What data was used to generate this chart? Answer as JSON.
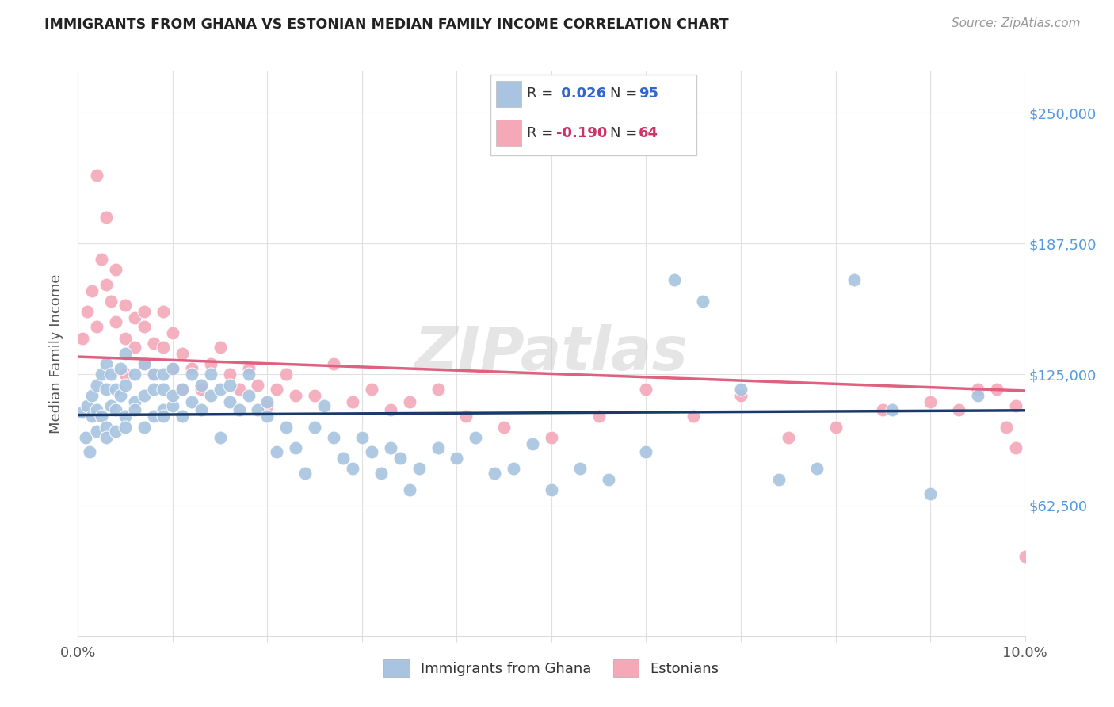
{
  "title": "IMMIGRANTS FROM GHANA VS ESTONIAN MEDIAN FAMILY INCOME CORRELATION CHART",
  "source": "Source: ZipAtlas.com",
  "ylabel": "Median Family Income",
  "ytick_labels": [
    "$62,500",
    "$125,000",
    "$187,500",
    "$250,000"
  ],
  "ytick_values": [
    62500,
    125000,
    187500,
    250000
  ],
  "ymin": 0,
  "ymax": 270000,
  "xmin": 0.0,
  "xmax": 0.1,
  "r_ghana": 0.026,
  "n_ghana": 95,
  "r_estonian": -0.19,
  "n_estonian": 64,
  "color_ghana": "#a8c4e0",
  "color_estonian": "#f4a8b8",
  "color_ghana_line": "#1a3a6b",
  "color_estonian_line": "#e06080",
  "watermark": "ZIPatlas",
  "ghana_x": [
    0.0005,
    0.0008,
    0.001,
    0.0012,
    0.0015,
    0.0015,
    0.002,
    0.002,
    0.002,
    0.0025,
    0.0025,
    0.003,
    0.003,
    0.003,
    0.003,
    0.0035,
    0.0035,
    0.004,
    0.004,
    0.004,
    0.0045,
    0.0045,
    0.005,
    0.005,
    0.005,
    0.005,
    0.006,
    0.006,
    0.006,
    0.007,
    0.007,
    0.007,
    0.008,
    0.008,
    0.008,
    0.009,
    0.009,
    0.009,
    0.009,
    0.01,
    0.01,
    0.01,
    0.011,
    0.011,
    0.012,
    0.012,
    0.013,
    0.013,
    0.014,
    0.014,
    0.015,
    0.015,
    0.016,
    0.016,
    0.017,
    0.018,
    0.018,
    0.019,
    0.02,
    0.02,
    0.021,
    0.022,
    0.023,
    0.024,
    0.025,
    0.026,
    0.027,
    0.028,
    0.029,
    0.03,
    0.031,
    0.032,
    0.033,
    0.034,
    0.035,
    0.036,
    0.038,
    0.04,
    0.042,
    0.044,
    0.046,
    0.048,
    0.05,
    0.053,
    0.056,
    0.06,
    0.063,
    0.066,
    0.07,
    0.074,
    0.078,
    0.082,
    0.086,
    0.09,
    0.095
  ],
  "ghana_y": [
    107000,
    95000,
    110000,
    88000,
    105000,
    115000,
    120000,
    98000,
    108000,
    125000,
    105000,
    118000,
    130000,
    100000,
    95000,
    110000,
    125000,
    108000,
    118000,
    98000,
    115000,
    128000,
    105000,
    120000,
    135000,
    100000,
    112000,
    125000,
    108000,
    130000,
    115000,
    100000,
    125000,
    105000,
    118000,
    108000,
    118000,
    105000,
    125000,
    110000,
    115000,
    128000,
    118000,
    105000,
    125000,
    112000,
    120000,
    108000,
    115000,
    125000,
    118000,
    95000,
    112000,
    120000,
    108000,
    115000,
    125000,
    108000,
    105000,
    112000,
    88000,
    100000,
    90000,
    78000,
    100000,
    110000,
    95000,
    85000,
    80000,
    95000,
    88000,
    78000,
    90000,
    85000,
    70000,
    80000,
    90000,
    85000,
    95000,
    78000,
    80000,
    92000,
    70000,
    80000,
    75000,
    88000,
    170000,
    160000,
    118000,
    75000,
    80000,
    170000,
    108000,
    68000,
    115000
  ],
  "estonian_x": [
    0.0005,
    0.001,
    0.0015,
    0.002,
    0.002,
    0.0025,
    0.003,
    0.003,
    0.0035,
    0.004,
    0.004,
    0.005,
    0.005,
    0.005,
    0.006,
    0.006,
    0.007,
    0.007,
    0.007,
    0.008,
    0.008,
    0.009,
    0.009,
    0.01,
    0.01,
    0.011,
    0.011,
    0.012,
    0.013,
    0.014,
    0.015,
    0.016,
    0.017,
    0.018,
    0.019,
    0.02,
    0.021,
    0.022,
    0.023,
    0.025,
    0.027,
    0.029,
    0.031,
    0.033,
    0.035,
    0.038,
    0.041,
    0.045,
    0.05,
    0.055,
    0.06,
    0.065,
    0.07,
    0.075,
    0.08,
    0.085,
    0.09,
    0.093,
    0.095,
    0.097,
    0.098,
    0.099,
    0.099,
    0.1
  ],
  "estonian_y": [
    142000,
    155000,
    165000,
    148000,
    220000,
    180000,
    168000,
    200000,
    160000,
    175000,
    150000,
    142000,
    158000,
    125000,
    138000,
    152000,
    148000,
    130000,
    155000,
    140000,
    125000,
    155000,
    138000,
    128000,
    145000,
    118000,
    135000,
    128000,
    118000,
    130000,
    138000,
    125000,
    118000,
    128000,
    120000,
    110000,
    118000,
    125000,
    115000,
    115000,
    130000,
    112000,
    118000,
    108000,
    112000,
    118000,
    105000,
    100000,
    95000,
    105000,
    118000,
    105000,
    115000,
    95000,
    100000,
    108000,
    112000,
    108000,
    118000,
    118000,
    100000,
    110000,
    90000,
    38000
  ]
}
